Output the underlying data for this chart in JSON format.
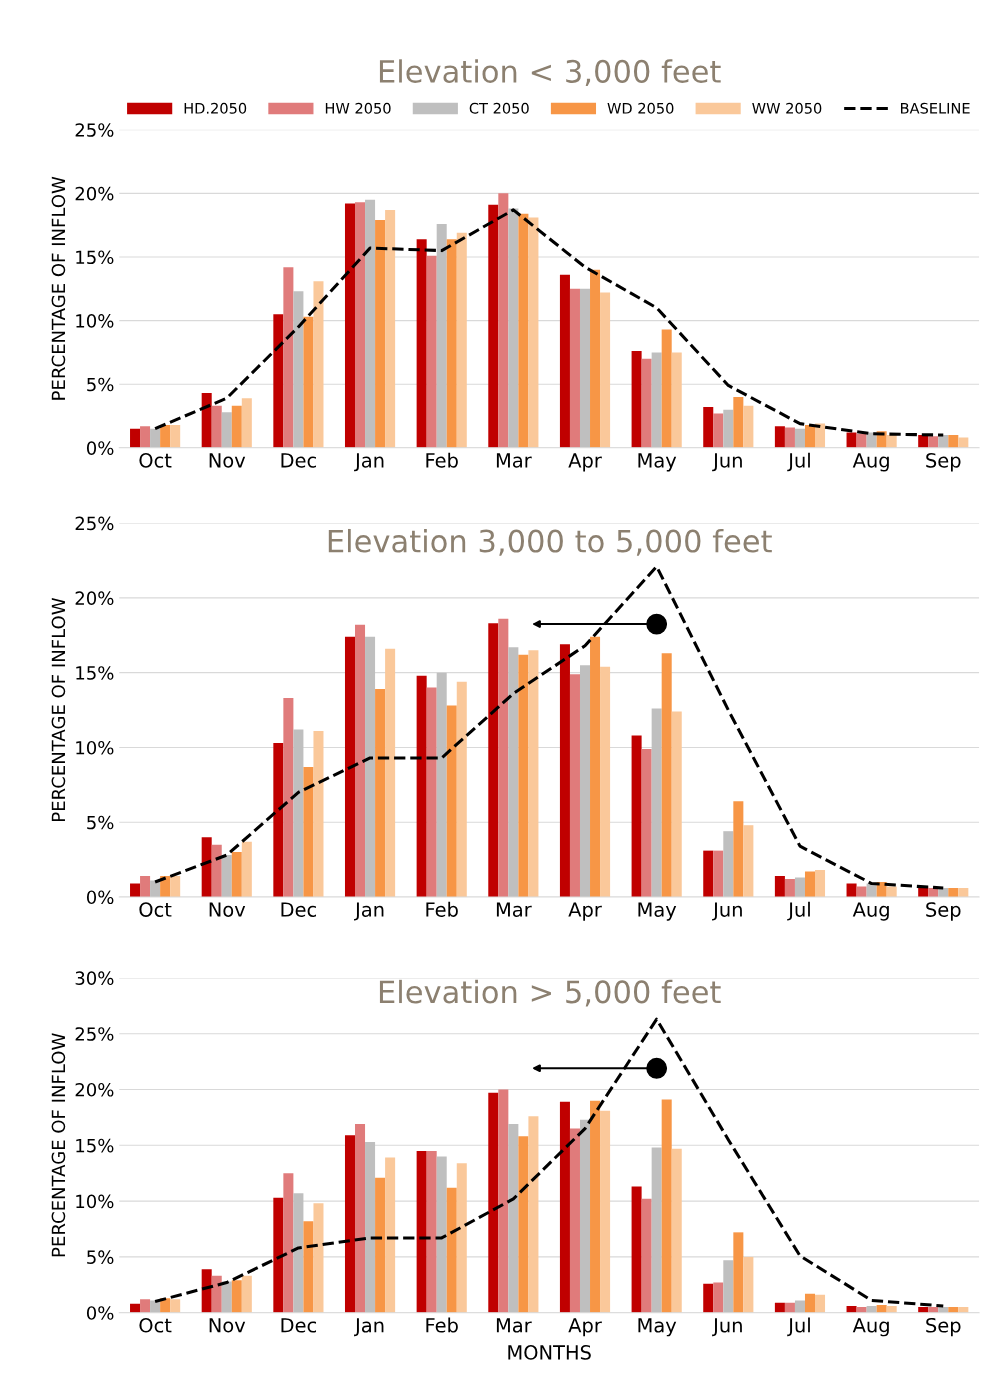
{
  "chart_data": [
    {
      "type": "bar",
      "title": "Elevation < 3,000 feet",
      "ylabel": "PERCENTAGE OF INFLOW",
      "categories": [
        "Oct",
        "Nov",
        "Dec",
        "Jan",
        "Feb",
        "Mar",
        "Apr",
        "May",
        "Jun",
        "Jul",
        "Aug",
        "Sep"
      ],
      "series": [
        {
          "name": "HD.2050",
          "color": "#c00000",
          "values": [
            1.5,
            4.3,
            10.5,
            19.2,
            16.4,
            19.1,
            13.6,
            7.6,
            3.2,
            1.7,
            1.2,
            1.0
          ]
        },
        {
          "name": "HW 2050",
          "color": "#e07b7b",
          "values": [
            1.7,
            3.3,
            14.2,
            19.3,
            15.1,
            20.0,
            12.5,
            7.0,
            2.7,
            1.6,
            1.1,
            0.9
          ]
        },
        {
          "name": "CT 2050",
          "color": "#bfbfbf",
          "values": [
            1.5,
            2.8,
            12.3,
            19.5,
            17.6,
            18.8,
            12.5,
            7.5,
            3.0,
            1.5,
            1.2,
            1.0
          ]
        },
        {
          "name": "WD 2050",
          "color": "#f79646",
          "values": [
            1.8,
            3.3,
            10.3,
            17.9,
            16.4,
            18.4,
            14.0,
            9.3,
            4.0,
            1.8,
            1.3,
            1.0
          ]
        },
        {
          "name": "WW 2050",
          "color": "#fac89a",
          "values": [
            1.8,
            3.9,
            13.1,
            18.7,
            16.9,
            18.1,
            12.2,
            7.5,
            3.3,
            1.9,
            1.0,
            0.8
          ]
        },
        {
          "name": "BASELINE",
          "type": "line",
          "line_style": "dashed",
          "color": "#000000",
          "values": [
            1.5,
            3.9,
            9.5,
            15.7,
            15.5,
            18.7,
            14.2,
            11.0,
            4.9,
            1.9,
            1.1,
            1.0
          ]
        }
      ],
      "ylim": [
        0,
        25
      ],
      "yticks": [
        {
          "value": 0,
          "label": "0%"
        },
        {
          "value": 5,
          "label": "5%"
        },
        {
          "value": 10,
          "label": "10%"
        },
        {
          "value": 15,
          "label": "15%"
        },
        {
          "value": 20,
          "label": "20%"
        },
        {
          "value": 25,
          "label": "25%"
        }
      ],
      "grid": "y",
      "legend": "top"
    },
    {
      "type": "bar",
      "title": "Elevation 3,000 to 5,000 feet",
      "ylabel": "PERCENTAGE OF INFLOW",
      "categories": [
        "Oct",
        "Nov",
        "Dec",
        "Jan",
        "Feb",
        "Mar",
        "Apr",
        "May",
        "Jun",
        "Jul",
        "Aug",
        "Sep"
      ],
      "series": [
        {
          "color": "#c00000",
          "values": [
            0.9,
            4.0,
            10.3,
            17.4,
            14.8,
            18.3,
            16.9,
            10.8,
            3.1,
            1.4,
            0.9,
            0.7
          ]
        },
        {
          "color": "#e07b7b",
          "values": [
            1.4,
            3.5,
            13.3,
            18.2,
            14.0,
            18.6,
            14.9,
            9.9,
            3.1,
            1.2,
            0.7,
            0.6
          ]
        },
        {
          "color": "#bfbfbf",
          "values": [
            1.1,
            2.8,
            11.2,
            17.4,
            15.0,
            16.7,
            15.5,
            12.6,
            4.4,
            1.3,
            0.9,
            0.6
          ]
        },
        {
          "color": "#f79646",
          "values": [
            1.4,
            3.0,
            8.7,
            13.9,
            12.8,
            16.2,
            17.4,
            16.3,
            6.4,
            1.7,
            1.0,
            0.6
          ]
        },
        {
          "color": "#fac89a",
          "values": [
            1.4,
            3.7,
            11.1,
            16.6,
            14.4,
            16.5,
            15.4,
            12.4,
            4.8,
            1.8,
            0.7,
            0.6
          ]
        },
        {
          "type": "line",
          "line_style": "dashed",
          "color": "#000000",
          "values": [
            1.0,
            2.8,
            7.0,
            9.3,
            9.3,
            13.6,
            16.8,
            22.1,
            12.5,
            3.4,
            0.9,
            0.6
          ]
        }
      ],
      "ylim": [
        0,
        25
      ],
      "yticks": [
        {
          "value": 0,
          "label": "0%"
        },
        {
          "value": 5,
          "label": "5%"
        },
        {
          "value": 10,
          "label": "10%"
        },
        {
          "value": 15,
          "label": "15%"
        },
        {
          "value": 20,
          "label": "20%"
        },
        {
          "value": 25,
          "label": "25%"
        }
      ],
      "grid": "y"
    },
    {
      "type": "bar",
      "title": "Elevation > 5,000 feet",
      "ylabel": "PERCENTAGE OF INFLOW",
      "xlabel": "MONTHS",
      "categories": [
        "Oct",
        "Nov",
        "Dec",
        "Jan",
        "Feb",
        "Mar",
        "Apr",
        "May",
        "Jun",
        "Jul",
        "Aug",
        "Sep"
      ],
      "series": [
        {
          "color": "#c00000",
          "values": [
            0.8,
            3.9,
            10.3,
            15.9,
            14.5,
            19.7,
            18.9,
            11.3,
            2.6,
            0.9,
            0.6,
            0.5
          ]
        },
        {
          "color": "#e07b7b",
          "values": [
            1.2,
            3.3,
            12.5,
            16.9,
            14.5,
            20.0,
            16.5,
            10.2,
            2.7,
            0.9,
            0.5,
            0.5
          ]
        },
        {
          "color": "#bfbfbf",
          "values": [
            1.1,
            2.8,
            10.7,
            15.3,
            14.0,
            16.9,
            17.3,
            14.8,
            4.7,
            1.1,
            0.6,
            0.5
          ]
        },
        {
          "color": "#f79646",
          "values": [
            1.3,
            2.9,
            8.2,
            12.1,
            11.2,
            15.8,
            19.0,
            19.1,
            7.2,
            1.7,
            0.7,
            0.5
          ]
        },
        {
          "color": "#fac89a",
          "values": [
            1.2,
            3.3,
            9.8,
            13.9,
            13.4,
            17.6,
            18.1,
            14.7,
            5.0,
            1.6,
            0.6,
            0.5
          ]
        },
        {
          "type": "line",
          "line_style": "dashed",
          "color": "#000000",
          "values": [
            1.0,
            2.7,
            5.8,
            6.7,
            6.7,
            10.2,
            16.5,
            26.3,
            15.5,
            5.1,
            1.1,
            0.6
          ]
        }
      ],
      "ylim": [
        0,
        30
      ],
      "yticks": [
        {
          "value": 0,
          "label": "0%"
        },
        {
          "value": 5,
          "label": "5%"
        },
        {
          "value": 10,
          "label": "10%"
        },
        {
          "value": 15,
          "label": "15%"
        },
        {
          "value": 20,
          "label": "20%"
        },
        {
          "value": 25,
          "label": "25%"
        },
        {
          "value": 30,
          "label": "30%"
        }
      ],
      "grid": "y"
    }
  ]
}
